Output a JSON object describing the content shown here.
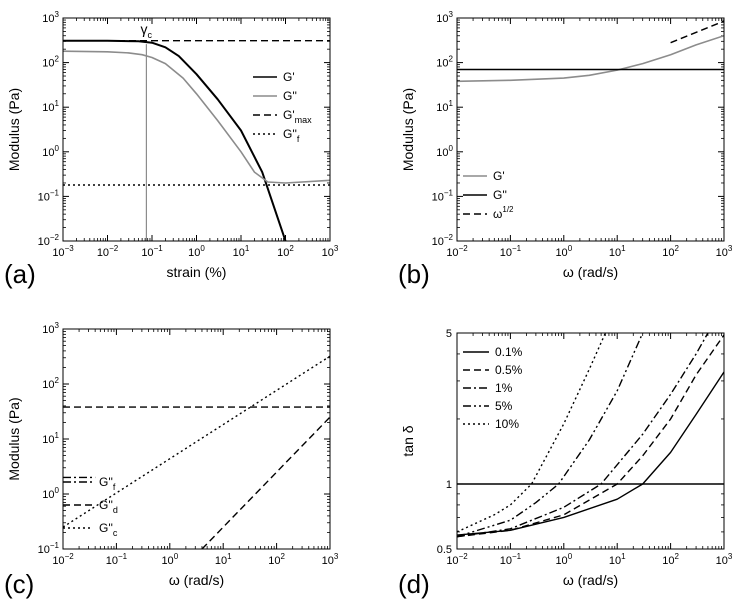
{
  "panels": [
    {
      "id": "a",
      "label": "(a)",
      "xlabel": "strain (%)",
      "ylabel": "Modulus (Pa)",
      "xscale": "log",
      "yscale": "log",
      "xlim_exp": [
        -3,
        3
      ],
      "ylim_exp": [
        -2,
        3
      ],
      "annotation": {
        "text": "γ",
        "sub": "c",
        "x": 0.075,
        "y": 320
      },
      "legend": [
        {
          "label": "G'",
          "sub": "",
          "style": "solid",
          "color": "#000000"
        },
        {
          "label": "G''",
          "sub": "",
          "style": "solid",
          "color": "#8c8c8c"
        },
        {
          "label": "G'",
          "sub": "max",
          "style": "dashed",
          "color": "#000000"
        },
        {
          "label": "G''",
          "sub": "f",
          "style": "dotted",
          "color": "#000000"
        }
      ],
      "series": [
        {
          "name": "G'",
          "color": "#000000",
          "style": "solid",
          "width": 2,
          "points": [
            [
              0.001,
              310
            ],
            [
              0.01,
              310
            ],
            [
              0.05,
              300
            ],
            [
              0.1,
              280
            ],
            [
              0.2,
              220
            ],
            [
              0.4,
              140
            ],
            [
              1,
              55
            ],
            [
              3,
              15
            ],
            [
              10,
              3
            ],
            [
              30,
              0.35
            ],
            [
              100,
              0.01
            ]
          ]
        },
        {
          "name": "G''",
          "color": "#8c8c8c",
          "style": "solid",
          "width": 1.6,
          "points": [
            [
              0.001,
              180
            ],
            [
              0.01,
              175
            ],
            [
              0.03,
              165
            ],
            [
              0.06,
              150
            ],
            [
              0.1,
              130
            ],
            [
              0.2,
              95
            ],
            [
              0.5,
              45
            ],
            [
              1,
              20
            ],
            [
              3,
              5
            ],
            [
              10,
              1
            ],
            [
              20,
              0.35
            ],
            [
              40,
              0.21
            ],
            [
              100,
              0.2
            ],
            [
              1000,
              0.23
            ]
          ]
        },
        {
          "name": "G'max",
          "color": "#000000",
          "style": "dashed",
          "width": 1.4,
          "points": [
            [
              0.001,
              310
            ],
            [
              1000,
              310
            ]
          ]
        },
        {
          "name": "G''f",
          "color": "#000000",
          "style": "dotted",
          "width": 1.4,
          "points": [
            [
              0.001,
              0.18
            ],
            [
              1000,
              0.18
            ]
          ]
        },
        {
          "name": "gamma-c marker",
          "color": "#8c8c8c",
          "style": "solid",
          "width": 1.2,
          "points": [
            [
              0.075,
              0.01
            ],
            [
              0.075,
              260
            ]
          ]
        }
      ]
    },
    {
      "id": "b",
      "label": "(b)",
      "xlabel": "ω (rad/s)",
      "ylabel": "Modulus (Pa)",
      "xscale": "log",
      "yscale": "log",
      "xlim_exp": [
        -2,
        3
      ],
      "ylim_exp": [
        -2,
        3
      ],
      "legend": [
        {
          "label": "G'",
          "sub": "",
          "sup": "",
          "style": "solid",
          "color": "#8c8c8c"
        },
        {
          "label": "G''",
          "sub": "",
          "sup": "",
          "style": "solid",
          "color": "#000000"
        },
        {
          "label": "ω",
          "sub": "",
          "sup": "1/2",
          "style": "dashed",
          "color": "#000000"
        }
      ],
      "series": [
        {
          "name": "G'",
          "color": "#8c8c8c",
          "style": "solid",
          "width": 1.6,
          "points": [
            [
              0.01,
              38
            ],
            [
              0.1,
              40
            ],
            [
              1,
              45
            ],
            [
              3,
              52
            ],
            [
              10,
              68
            ],
            [
              30,
              95
            ],
            [
              100,
              150
            ],
            [
              300,
              250
            ],
            [
              1000,
              400
            ]
          ]
        },
        {
          "name": "G''",
          "color": "#000000",
          "style": "solid",
          "width": 1.6,
          "points": [
            [
              0.01,
              70
            ],
            [
              1000,
              70
            ]
          ]
        },
        {
          "name": "ω^1/2",
          "color": "#000000",
          "style": "dashed",
          "width": 1.4,
          "points": [
            [
              100,
              280
            ],
            [
              1000,
              850
            ]
          ]
        }
      ]
    },
    {
      "id": "c",
      "label": "(c)",
      "xlabel": "ω (rad/s)",
      "ylabel": "Modulus (Pa)",
      "xscale": "log",
      "yscale": "log",
      "xlim_exp": [
        -2,
        3
      ],
      "ylim_exp": [
        -1,
        3
      ],
      "legend": [
        {
          "label": "G''",
          "sub": "f",
          "style": "dashdot",
          "color": "#000000"
        },
        {
          "label": "G''",
          "sub": "d",
          "style": "dashed",
          "color": "#000000"
        },
        {
          "label": "G''",
          "sub": "c",
          "style": "dotted",
          "color": "#000000"
        }
      ],
      "series": [
        {
          "name": "G''f",
          "color": "#000000",
          "style": "dashdot",
          "width": 1.4,
          "points": [
            [
              0.01,
              2
            ],
            [
              0.04,
              2
            ]
          ]
        },
        {
          "name": "G''d",
          "color": "#000000",
          "style": "dashed",
          "width": 1.4,
          "points": [
            [
              0.01,
              38
            ],
            [
              1000,
              38
            ]
          ]
        },
        {
          "name": "G''d rising",
          "color": "#000000",
          "style": "dashed",
          "width": 1.4,
          "points": [
            [
              4,
              0.1
            ],
            [
              1000,
              25
            ]
          ]
        },
        {
          "name": "G''c",
          "color": "#000000",
          "style": "dotted",
          "width": 1.4,
          "points": [
            [
              0.01,
              0.25
            ],
            [
              1000,
              320
            ]
          ]
        }
      ]
    },
    {
      "id": "d",
      "label": "(d)",
      "xlabel": "ω (rad/s)",
      "ylabel": "tan δ",
      "xscale": "log",
      "yscale": "log",
      "xlim_exp": [
        -2,
        3
      ],
      "ylim": [
        0.5,
        5
      ],
      "yticks": [
        0.5,
        1,
        5
      ],
      "legend": [
        {
          "label": "0.1%",
          "style": "solid",
          "color": "#000000"
        },
        {
          "label": "0.5%",
          "style": "dashed",
          "color": "#000000"
        },
        {
          "label": "1%",
          "style": "dashdot",
          "color": "#000000"
        },
        {
          "label": "5%",
          "style": "dashdotdot",
          "color": "#000000"
        },
        {
          "label": "10%",
          "style": "dotted",
          "color": "#000000"
        }
      ],
      "series": [
        {
          "name": "0.1%",
          "color": "#000000",
          "style": "solid",
          "width": 1.4,
          "points": [
            [
              0.01,
              0.58
            ],
            [
              0.1,
              0.61
            ],
            [
              1,
              0.7
            ],
            [
              10,
              0.85
            ],
            [
              30,
              1.0
            ],
            [
              100,
              1.4
            ],
            [
              300,
              2.1
            ],
            [
              1000,
              3.3
            ]
          ]
        },
        {
          "name": "0.5%",
          "color": "#000000",
          "style": "dashed",
          "width": 1.4,
          "points": [
            [
              0.01,
              0.57
            ],
            [
              0.1,
              0.61
            ],
            [
              1,
              0.72
            ],
            [
              10,
              1.0
            ],
            [
              30,
              1.35
            ],
            [
              100,
              2.0
            ],
            [
              300,
              3.2
            ],
            [
              1000,
              4.9
            ]
          ]
        },
        {
          "name": "1%",
          "color": "#000000",
          "style": "dashdot",
          "width": 1.4,
          "points": [
            [
              0.01,
              0.57
            ],
            [
              0.1,
              0.62
            ],
            [
              1,
              0.78
            ],
            [
              5,
              1.0
            ],
            [
              30,
              1.7
            ],
            [
              100,
              2.6
            ],
            [
              300,
              4.0
            ],
            [
              500,
              5.0
            ]
          ]
        },
        {
          "name": "5%",
          "color": "#000000",
          "style": "dashdotdot",
          "width": 1.4,
          "points": [
            [
              0.01,
              0.57
            ],
            [
              0.1,
              0.68
            ],
            [
              0.3,
              0.82
            ],
            [
              0.8,
              1.0
            ],
            [
              3,
              1.6
            ],
            [
              10,
              2.7
            ],
            [
              30,
              5.0
            ]
          ]
        },
        {
          "name": "10%",
          "color": "#000000",
          "style": "dotted",
          "width": 1.4,
          "points": [
            [
              0.01,
              0.6
            ],
            [
              0.05,
              0.72
            ],
            [
              0.1,
              0.8
            ],
            [
              0.25,
              1.0
            ],
            [
              1,
              1.9
            ],
            [
              3,
              3.4
            ],
            [
              6,
              5.0
            ]
          ]
        },
        {
          "name": "tan δ = 1",
          "color": "#000000",
          "style": "solid",
          "width": 1.4,
          "points": [
            [
              0.01,
              1
            ],
            [
              1000,
              1
            ]
          ]
        }
      ]
    }
  ]
}
